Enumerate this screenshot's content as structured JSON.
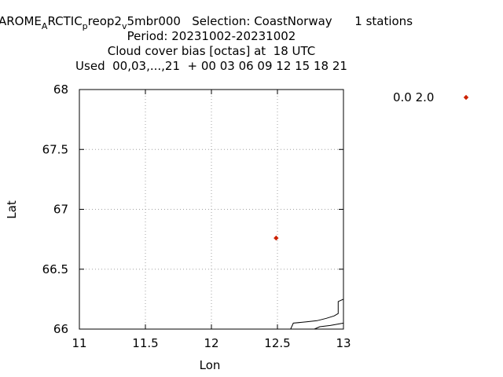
{
  "chart_data": {
    "type": "scatter",
    "title_lines": [
      "AROME_A RCTIC_p reop2_v 5mbr000   Selection: CoastNorway      1 stations",
      "Period: 20231002-20231002",
      "Cloud cover bias [octas] at  18 UTC",
      "Used  00,03,...,21  + 00 03 06 09 12 15 18 21"
    ],
    "title_parts": {
      "p1": "AROME",
      "s1": "A",
      "p2": "RCTIC",
      "s2": "p",
      "p3": "reop2",
      "s3": "v",
      "p4": "5mbr000   Selection: CoastNorway      1 stations"
    },
    "xlabel": "Lon",
    "ylabel": "Lat",
    "xlim": [
      11,
      13
    ],
    "ylim": [
      66,
      68
    ],
    "xticks": [
      11,
      11.5,
      12,
      12.5,
      13
    ],
    "yticks": [
      66,
      66.5,
      67,
      67.5,
      68
    ],
    "xtick_labels": [
      "11",
      "11.5",
      "12",
      "12.5",
      "13"
    ],
    "ytick_labels": [
      "66",
      "66.5",
      "67",
      "67.5",
      "68"
    ],
    "grid": true,
    "legend_position": "right",
    "series": [
      {
        "name": "0.0 2.0",
        "color": "#cc2200",
        "marker": "diamond",
        "points": [
          {
            "x": 12.49,
            "y": 66.76
          }
        ]
      }
    ],
    "coastlines": [
      [
        [
          12.6,
          66.0
        ],
        [
          12.62,
          66.05
        ],
        [
          12.72,
          66.06
        ],
        [
          12.8,
          66.07
        ],
        [
          12.87,
          66.09
        ],
        [
          12.93,
          66.11
        ],
        [
          12.96,
          66.13
        ],
        [
          12.96,
          66.23
        ],
        [
          13.0,
          66.25
        ]
      ],
      [
        [
          12.78,
          66.0
        ],
        [
          12.82,
          66.02
        ],
        [
          12.9,
          66.03
        ],
        [
          13.0,
          66.05
        ]
      ]
    ]
  }
}
